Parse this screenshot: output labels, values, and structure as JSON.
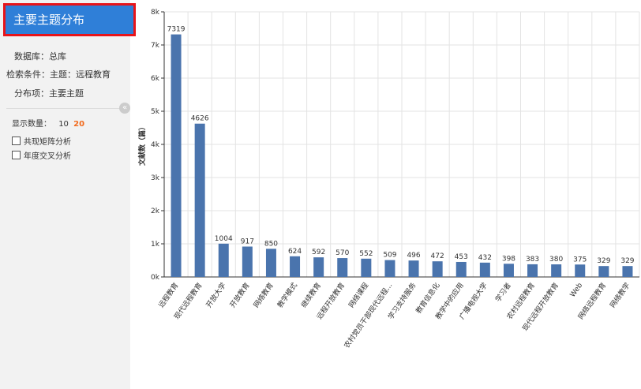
{
  "sidebar": {
    "title": "主要主题分布",
    "database": "数据库：总库",
    "condition": "检索条件：主题：远程教育",
    "distribution": "分布项：主要主题",
    "display_count_label": "显示数量：",
    "display_options": [
      "10",
      "20"
    ],
    "options": [
      "共现矩阵分析",
      "年度交叉分析"
    ]
  },
  "chart_data": {
    "type": "bar",
    "y_label": "文献数（篇）",
    "categories": [
      "远程教育",
      "现代远程教育",
      "开放大学",
      "开放教育",
      "网络教育",
      "教学模式",
      "继续教育",
      "远程开放教育",
      "网络课程",
      "农村党员干部现代远程...",
      "学习支持服务",
      "教育信息化",
      "教学中的应用",
      "广播电视大学",
      "学习者",
      "农村远程教育",
      "现代远程开放教育",
      "Web",
      "网络远程教育",
      "网络教学"
    ],
    "values": [
      7319,
      4626,
      1004,
      917,
      850,
      624,
      592,
      570,
      552,
      509,
      496,
      472,
      453,
      432,
      398,
      383,
      380,
      375,
      329,
      329
    ],
    "color": "#4a74ad",
    "ylim": [
      0,
      8000
    ],
    "yticks": [
      {
        "value": 0,
        "label": "0k"
      },
      {
        "value": 1000,
        "label": "1k"
      },
      {
        "value": 2000,
        "label": "2k"
      },
      {
        "value": 3000,
        "label": "3k"
      },
      {
        "value": 4000,
        "label": "4k"
      },
      {
        "value": 5000,
        "label": "5k"
      },
      {
        "value": 6000,
        "label": "6k"
      },
      {
        "value": 7000,
        "label": "7k"
      },
      {
        "value": 8000,
        "label": "8k"
      }
    ],
    "grid": true
  }
}
